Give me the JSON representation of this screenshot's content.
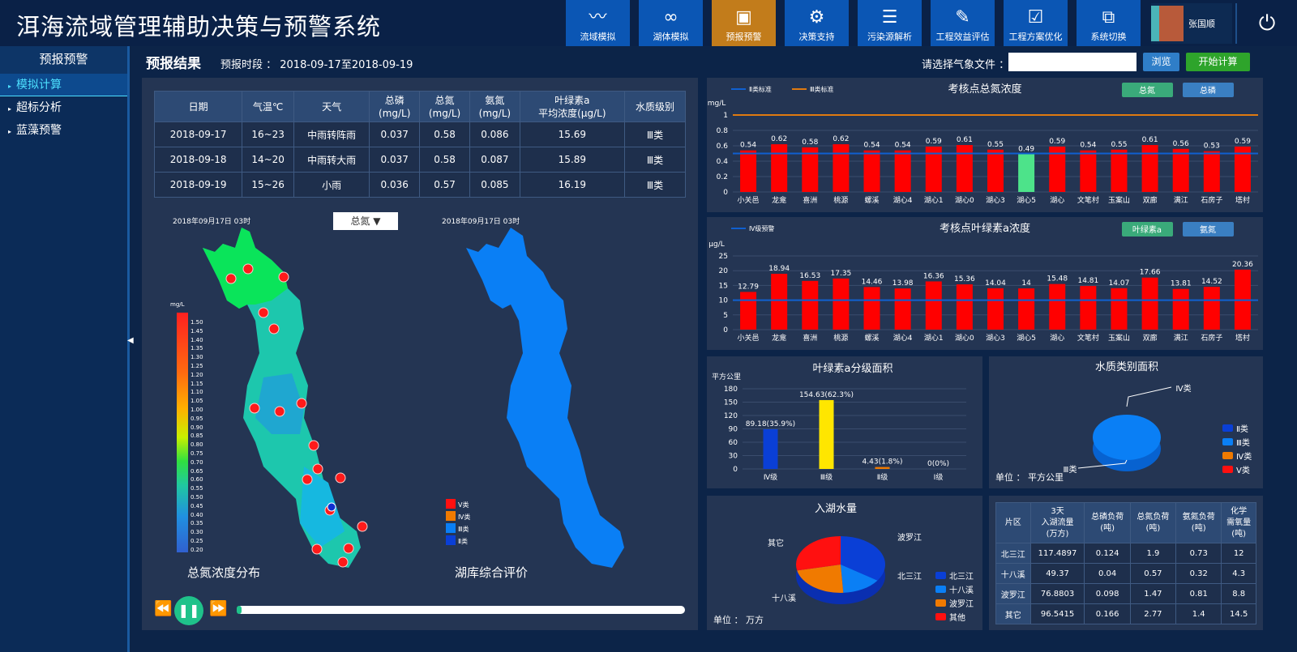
{
  "header": {
    "title": "洱海流域管理辅助决策与预警系统",
    "nav": [
      {
        "label": "流域模拟",
        "icon": "river-icon"
      },
      {
        "label": "湖体模拟",
        "icon": "lake-icon"
      },
      {
        "label": "预报预警",
        "icon": "warning-doc-icon",
        "active": true
      },
      {
        "label": "决策支持",
        "icon": "gear-people-icon"
      },
      {
        "label": "污染源解析",
        "icon": "list-icon"
      },
      {
        "label": "工程效益评估",
        "icon": "edit-icon"
      },
      {
        "label": "工程方案优化",
        "icon": "clipboard-check-icon"
      },
      {
        "label": "系统切换",
        "icon": "switch-icon"
      }
    ],
    "user": "张国顺"
  },
  "sidebar": {
    "title": "预报预警",
    "items": [
      {
        "label": "模拟计算",
        "active": true
      },
      {
        "label": "超标分析"
      },
      {
        "label": "蓝藻预警"
      }
    ]
  },
  "toolbar": {
    "title": "预报结果",
    "range": "预报时段 ： 2018-09-17至2018-09-19",
    "file_label": "请选择气象文件 ：",
    "file_value": "",
    "browse": "浏览",
    "start": "开始计算"
  },
  "forecast_table": {
    "headers": [
      "日期",
      "气温℃",
      "天气",
      "总磷\n(mg/L)",
      "总氮\n(mg/L)",
      "氨氮\n(mg/L)",
      "叶绿素a\n平均浓度(μg/L)",
      "水质级别"
    ],
    "rows": [
      [
        "2018-09-17",
        "16~23",
        "中雨转阵雨",
        "0.037",
        "0.58",
        "0.086",
        "15.69",
        "Ⅲ类"
      ],
      [
        "2018-09-18",
        "14~20",
        "中雨转大雨",
        "0.037",
        "0.58",
        "0.087",
        "15.89",
        "Ⅲ类"
      ],
      [
        "2018-09-19",
        "15~26",
        "小雨",
        "0.036",
        "0.57",
        "0.085",
        "16.19",
        "Ⅲ类"
      ]
    ]
  },
  "maps": {
    "time_left": "2018年09月17日  03时",
    "time_right": "2018年09月17日  03时",
    "selected_param": "总氮",
    "caption_left": "总氮浓度分布",
    "caption_right": "湖库综合评价",
    "scale_unit": "mg/L",
    "scale_labels": [
      "1.50",
      "1.45",
      "1.40",
      "1.35",
      "1.30",
      "1.25",
      "1.20",
      "1.15",
      "1.10",
      "1.05",
      "1.00",
      "0.95",
      "0.90",
      "0.85",
      "0.80",
      "0.75",
      "0.70",
      "0.65",
      "0.60",
      "0.55",
      "0.50",
      "0.45",
      "0.40",
      "0.35",
      "0.30",
      "0.25",
      "0.20"
    ],
    "class_legend": [
      {
        "label": "Ⅴ类",
        "color": "#ff1010"
      },
      {
        "label": "Ⅳ类",
        "color": "#f07a00"
      },
      {
        "label": "Ⅲ类",
        "color": "#0a7ff5"
      },
      {
        "label": "Ⅱ类",
        "color": "#0a3fd6"
      }
    ]
  },
  "playback": {
    "progress": 0.01
  },
  "chart_data": [
    {
      "type": "bar",
      "title": "考核点总氮浓度",
      "ylabel": "mg/L",
      "ylim": [
        0,
        1
      ],
      "yticks": [
        0,
        0.2,
        0.4,
        0.6,
        0.8,
        1
      ],
      "buttons": [
        "总氮",
        "总磷"
      ],
      "legend": [
        {
          "name": "Ⅱ类标准",
          "color": "#1060d0",
          "value": 0.5
        },
        {
          "name": "Ⅲ类标准",
          "color": "#e07a10",
          "value": 1
        }
      ],
      "categories": [
        "小关邑",
        "龙龛",
        "喜洲",
        "桃源",
        "螺溪",
        "湖心4",
        "湖心1",
        "湖心0",
        "湖心3",
        "湖心5",
        "湖心",
        "文笔村",
        "玉案山",
        "双廊",
        "满江",
        "石房子",
        "塔村"
      ],
      "values": [
        0.54,
        0.62,
        0.58,
        0.62,
        0.54,
        0.54,
        0.59,
        0.61,
        0.55,
        0.49,
        0.59,
        0.54,
        0.55,
        0.61,
        0.56,
        0.53,
        0.59
      ]
    },
    {
      "type": "bar",
      "title": "考核点叶绿素a浓度",
      "ylabel": "μg/L",
      "ylim": [
        0,
        25
      ],
      "yticks": [
        0,
        5,
        10,
        15,
        20,
        25
      ],
      "buttons": [
        "叶绿素a",
        "氨氮"
      ],
      "legend": [
        {
          "name": "Ⅳ级预警",
          "color": "#1060d0",
          "value": 10
        }
      ],
      "categories": [
        "小关邑",
        "龙龛",
        "喜洲",
        "桃源",
        "螺溪",
        "湖心4",
        "湖心1",
        "湖心0",
        "湖心3",
        "湖心5",
        "湖心",
        "文笔村",
        "玉案山",
        "双廊",
        "满江",
        "石房子",
        "塔村"
      ],
      "values": [
        12.79,
        18.94,
        16.53,
        17.35,
        14.46,
        13.98,
        16.36,
        15.36,
        14.04,
        14.0,
        15.48,
        14.81,
        14.07,
        17.66,
        13.81,
        14.52,
        20.36
      ]
    },
    {
      "type": "bar",
      "title": "叶绿素a分级面积",
      "ylabel": "平方公里",
      "ylim": [
        0,
        180
      ],
      "yticks": [
        0,
        30,
        60,
        90,
        120,
        150,
        180
      ],
      "categories": [
        "Ⅳ级",
        "Ⅲ级",
        "Ⅱ级",
        "Ⅰ级"
      ],
      "values": [
        89.18,
        154.63,
        4.43,
        0
      ],
      "labels": [
        "89.18(35.9%)",
        "154.63(62.3%)",
        "4.43(1.8%)",
        "0(0%)"
      ],
      "colors": [
        "#0a3fd6",
        "#ffe600",
        "#f07a00",
        "#0a3fd6"
      ]
    },
    {
      "type": "pie",
      "title": "水质类别面积",
      "unit": "单位 ：  平方公里",
      "categories": [
        "Ⅱ类",
        "Ⅲ类",
        "Ⅳ类",
        "Ⅴ类"
      ],
      "colors": [
        "#0a3fd6",
        "#0a7ff5",
        "#f07a00",
        "#ff1010"
      ],
      "slice_labels": [
        "Ⅳ类",
        "Ⅲ类"
      ]
    },
    {
      "type": "pie",
      "title": "入湖水量",
      "unit": "单位 ：   万方",
      "categories": [
        "北三江",
        "十八溪",
        "波罗江",
        "其他"
      ],
      "slice_labels": [
        "北三江",
        "十八溪",
        "波罗江",
        "其它"
      ],
      "values": [
        117.4897,
        49.37,
        76.8803,
        96.5415
      ],
      "colors": [
        "#0a3fd6",
        "#0a7ff5",
        "#f07a00",
        "#ff1010"
      ]
    }
  ],
  "load_table": {
    "headers": [
      "片区",
      "3天\n入湖流量\n(万方)",
      "总磷负荷\n(吨)",
      "总氮负荷\n(吨)",
      "氨氮负荷\n(吨)",
      "化学\n需氧量\n(吨)"
    ],
    "rows": [
      [
        "北三江",
        "117.4897",
        "0.124",
        "1.9",
        "0.73",
        "12"
      ],
      [
        "十八溪",
        "49.37",
        "0.04",
        "0.57",
        "0.32",
        "4.3"
      ],
      [
        "波罗江",
        "76.8803",
        "0.098",
        "1.47",
        "0.81",
        "8.8"
      ],
      [
        "其它",
        "96.5415",
        "0.166",
        "2.77",
        "1.4",
        "14.5"
      ]
    ]
  }
}
